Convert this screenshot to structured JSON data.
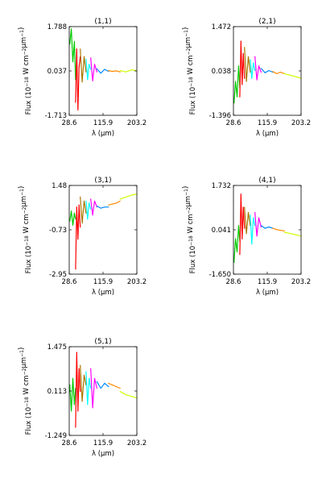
{
  "figure": {
    "xlabel": "λ (μm)",
    "ylabel": "Flux (10^-18 W cm^-2 μm^-1)"
  },
  "segment_colors": [
    "#00cc00",
    "#ff0000",
    "#aa7700",
    "#00ffff",
    "#ff00ff",
    "#0088ff",
    "#ff8800",
    "#ccff00"
  ],
  "chart_data": [
    {
      "type": "line",
      "title": "(1,1)",
      "xlim": [
        28.6,
        203.2
      ],
      "ylim": [
        -1.713,
        1.788
      ],
      "xticks": [
        "28.6",
        "115.9",
        "203.2"
      ],
      "yticks": [
        "-1.713",
        "0.037",
        "1.788"
      ],
      "xlabel": "λ (μm)",
      "ylabel": "Flux (10^-18 W cm^-2 μm^-1)",
      "series": [
        {
          "color": "#00cc00",
          "x": [
            30,
            34,
            38,
            42,
            45
          ],
          "y": [
            1.1,
            1.7,
            0.4,
            1.2,
            -0.3
          ]
        },
        {
          "color": "#ff0000",
          "x": [
            45,
            48,
            51,
            54,
            57
          ],
          "y": [
            -1.2,
            0.9,
            -1.5,
            0.2,
            0.6
          ]
        },
        {
          "color": "#aa7700",
          "x": [
            57,
            62,
            67,
            72
          ],
          "y": [
            0.9,
            -0.4,
            0.6,
            0.0
          ]
        },
        {
          "color": "#00ffff",
          "x": [
            72,
            76,
            80,
            84
          ],
          "y": [
            0.5,
            -0.3,
            0.3,
            0.1
          ]
        },
        {
          "color": "#ff00ff",
          "x": [
            84,
            89,
            94,
            100
          ],
          "y": [
            0.55,
            -0.35,
            0.3,
            0.0
          ]
        },
        {
          "color": "#0088ff",
          "x": [
            100,
            110,
            120,
            130
          ],
          "y": [
            0.12,
            -0.05,
            0.1,
            0.02
          ]
        },
        {
          "color": "#ff8800",
          "x": [
            130,
            140,
            150,
            160
          ],
          "y": [
            0.05,
            0.02,
            0.04,
            0.0
          ]
        },
        {
          "color": "#ccff00",
          "x": [
            160,
            175,
            190,
            203
          ],
          "y": [
            0.05,
            0.0,
            0.08,
            0.05
          ]
        }
      ]
    },
    {
      "type": "line",
      "title": "(2,1)",
      "xlim": [
        28.6,
        203.2
      ],
      "ylim": [
        -1.396,
        1.472
      ],
      "xticks": [
        "28.6",
        "115.9",
        "203.2"
      ],
      "yticks": [
        "-1.396",
        "0.038",
        "1.472"
      ],
      "xlabel": "λ (μm)",
      "ylabel": "Flux (10^-18 W cm^-2 μm^-1)",
      "series": [
        {
          "color": "#00cc00",
          "x": [
            30,
            34,
            38,
            42,
            45
          ],
          "y": [
            -1.0,
            -0.3,
            -0.8,
            0.2,
            -0.5
          ]
        },
        {
          "color": "#ff0000",
          "x": [
            45,
            48,
            51,
            54,
            57
          ],
          "y": [
            -0.8,
            1.0,
            -0.4,
            0.6,
            -0.2
          ]
        },
        {
          "color": "#aa7700",
          "x": [
            57,
            62,
            67,
            72
          ],
          "y": [
            0.8,
            -0.3,
            0.5,
            0.0
          ]
        },
        {
          "color": "#00ffff",
          "x": [
            72,
            76,
            80,
            84
          ],
          "y": [
            0.4,
            -0.2,
            0.3,
            0.05
          ]
        },
        {
          "color": "#ff00ff",
          "x": [
            84,
            89,
            94,
            100
          ],
          "y": [
            0.5,
            -0.25,
            0.2,
            0.0
          ]
        },
        {
          "color": "#0088ff",
          "x": [
            100,
            110,
            120,
            130
          ],
          "y": [
            0.12,
            -0.02,
            0.05,
            0.0
          ]
        },
        {
          "color": "#ff8800",
          "x": [
            130,
            140,
            150,
            160
          ],
          "y": [
            0.02,
            -0.05,
            0.0,
            -0.05
          ]
        },
        {
          "color": "#ccff00",
          "x": [
            160,
            175,
            190,
            203
          ],
          "y": [
            -0.05,
            -0.1,
            -0.15,
            -0.2
          ]
        }
      ]
    },
    {
      "type": "line",
      "title": "(3,1)",
      "xlim": [
        28.6,
        203.2
      ],
      "ylim": [
        -2.95,
        1.48
      ],
      "xticks": [
        "28.6",
        "115.9",
        "203.2"
      ],
      "yticks": [
        "-2.95",
        "-0.73",
        "1.48"
      ],
      "xlabel": "λ (μm)",
      "ylabel": "Flux (10^-18 W cm^-2 μm^-1)",
      "series": [
        {
          "color": "#00cc00",
          "x": [
            30,
            34,
            38,
            42,
            45
          ],
          "y": [
            -0.3,
            0.2,
            -0.5,
            0.1,
            -0.2
          ]
        },
        {
          "color": "#ff0000",
          "x": [
            45,
            48,
            51,
            54,
            57
          ],
          "y": [
            -2.7,
            0.4,
            -1.2,
            0.5,
            -0.6
          ]
        },
        {
          "color": "#aa7700",
          "x": [
            57,
            62,
            67,
            72
          ],
          "y": [
            0.9,
            -0.4,
            0.7,
            0.1
          ]
        },
        {
          "color": "#00ffff",
          "x": [
            72,
            76,
            80,
            84
          ],
          "y": [
            0.7,
            -0.2,
            0.6,
            0.3
          ]
        },
        {
          "color": "#ff00ff",
          "x": [
            84,
            89,
            94,
            100
          ],
          "y": [
            0.8,
            0.0,
            0.7,
            0.4
          ]
        },
        {
          "color": "#0088ff",
          "x": [
            100,
            110,
            120,
            130
          ],
          "y": [
            0.45,
            0.35,
            0.4,
            0.4
          ]
        },
        {
          "color": "#ff8800",
          "x": [
            130,
            140,
            150,
            160
          ],
          "y": [
            0.5,
            0.55,
            0.6,
            0.7
          ]
        },
        {
          "color": "#ccff00",
          "x": [
            160,
            175,
            190,
            203
          ],
          "y": [
            0.8,
            0.9,
            1.0,
            1.05
          ]
        }
      ]
    },
    {
      "type": "line",
      "title": "(4,1)",
      "xlim": [
        28.6,
        203.2
      ],
      "ylim": [
        -1.65,
        1.732
      ],
      "xticks": [
        "28.6",
        "115.9",
        "203.2"
      ],
      "yticks": [
        "-1.650",
        "0.041",
        "1.732"
      ],
      "xlabel": "λ (μm)",
      "ylabel": "Flux (10^-18 W cm^-2 μm^-1)",
      "series": [
        {
          "color": "#00cc00",
          "x": [
            30,
            34,
            38,
            42,
            45
          ],
          "y": [
            -1.2,
            -0.3,
            -0.8,
            0.2,
            -0.4
          ]
        },
        {
          "color": "#ff0000",
          "x": [
            45,
            48,
            51,
            54,
            57
          ],
          "y": [
            -0.9,
            1.4,
            -0.3,
            0.9,
            0.1
          ]
        },
        {
          "color": "#aa7700",
          "x": [
            57,
            62,
            67,
            72
          ],
          "y": [
            0.9,
            -0.1,
            0.7,
            0.2
          ]
        },
        {
          "color": "#00ffff",
          "x": [
            72,
            76,
            80,
            84
          ],
          "y": [
            0.6,
            -0.5,
            0.5,
            0.2
          ]
        },
        {
          "color": "#ff00ff",
          "x": [
            84,
            89,
            94,
            100
          ],
          "y": [
            0.7,
            -0.2,
            0.5,
            0.15
          ]
        },
        {
          "color": "#0088ff",
          "x": [
            100,
            110,
            120,
            130
          ],
          "y": [
            0.2,
            0.1,
            0.15,
            0.1
          ]
        },
        {
          "color": "#ff8800",
          "x": [
            130,
            140,
            150,
            160
          ],
          "y": [
            0.1,
            0.05,
            0.02,
            0.0
          ]
        },
        {
          "color": "#ccff00",
          "x": [
            160,
            175,
            190,
            203
          ],
          "y": [
            -0.05,
            -0.1,
            -0.15,
            -0.2
          ]
        }
      ]
    },
    {
      "type": "line",
      "title": "(5,1)",
      "xlim": [
        28.6,
        203.2
      ],
      "ylim": [
        -1.249,
        1.475
      ],
      "xticks": [
        "28.6",
        "115.9",
        "203.2"
      ],
      "yticks": [
        "-1.249",
        "0.113",
        "1.475"
      ],
      "xlabel": "λ (μm)",
      "ylabel": "Flux (10^-18 W cm^-2 μm^-1)",
      "series": [
        {
          "color": "#00cc00",
          "x": [
            30,
            34,
            38,
            42,
            45
          ],
          "y": [
            0.3,
            -0.5,
            0.5,
            -0.3,
            0.2
          ]
        },
        {
          "color": "#ff0000",
          "x": [
            45,
            48,
            51,
            54,
            57
          ],
          "y": [
            -1.0,
            1.3,
            -0.5,
            0.8,
            0.1
          ]
        },
        {
          "color": "#aa7700",
          "x": [
            57,
            62,
            67,
            72
          ],
          "y": [
            0.9,
            -0.2,
            0.6,
            0.3
          ]
        },
        {
          "color": "#00ffff",
          "x": [
            72,
            76,
            80,
            84
          ],
          "y": [
            0.7,
            -0.3,
            0.5,
            0.2
          ]
        },
        {
          "color": "#ff00ff",
          "x": [
            84,
            89,
            94,
            100
          ],
          "y": [
            0.8,
            -0.4,
            0.5,
            0.2
          ]
        },
        {
          "color": "#0088ff",
          "x": [
            100,
            110,
            120,
            130
          ],
          "y": [
            0.4,
            0.2,
            0.35,
            0.25
          ]
        },
        {
          "color": "#ff8800",
          "x": [
            130,
            140,
            150,
            160
          ],
          "y": [
            0.35,
            0.3,
            0.25,
            0.2
          ]
        },
        {
          "color": "#ccff00",
          "x": [
            160,
            175,
            190,
            203
          ],
          "y": [
            0.1,
            0.0,
            -0.05,
            -0.1
          ]
        }
      ]
    }
  ]
}
